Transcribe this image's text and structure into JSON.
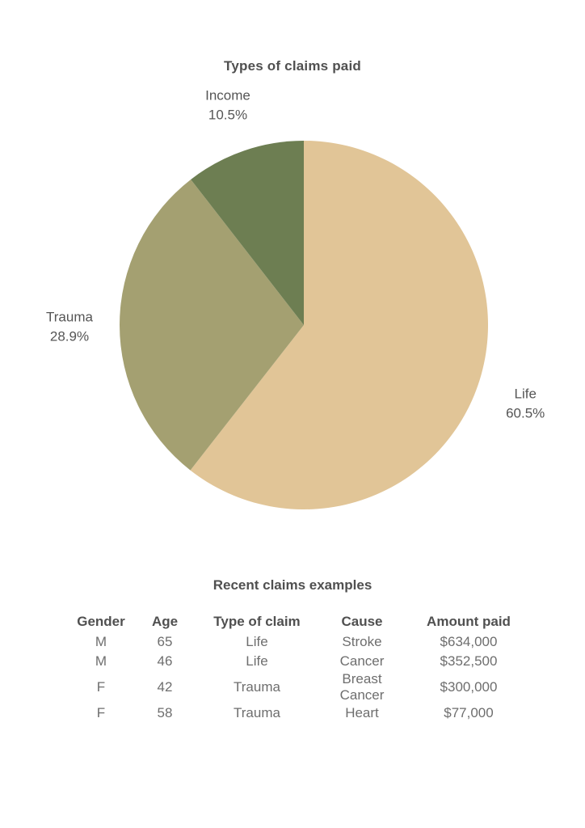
{
  "chart_data": {
    "type": "pie",
    "title": "Types of claims paid",
    "slices": [
      {
        "label": "Life",
        "value": 60.5,
        "display": "60.5%",
        "color": "#E1C597"
      },
      {
        "label": "Trauma",
        "value": 28.9,
        "display": "28.9%",
        "color": "#A4A071"
      },
      {
        "label": "Income",
        "value": 10.5,
        "display": "10.5%",
        "color": "#6D7E52"
      }
    ]
  },
  "table": {
    "title": "Recent claims examples",
    "headers": [
      "Gender",
      "Age",
      "Type of claim",
      "Cause",
      "Amount paid"
    ],
    "rows": [
      [
        "M",
        "65",
        "Life",
        "Stroke",
        "$634,000"
      ],
      [
        "M",
        "46",
        "Life",
        "Cancer",
        "$352,500"
      ],
      [
        "F",
        "42",
        "Trauma",
        "Breast Cancer",
        "$300,000"
      ],
      [
        "F",
        "58",
        "Trauma",
        "Heart",
        "$77,000"
      ]
    ]
  }
}
